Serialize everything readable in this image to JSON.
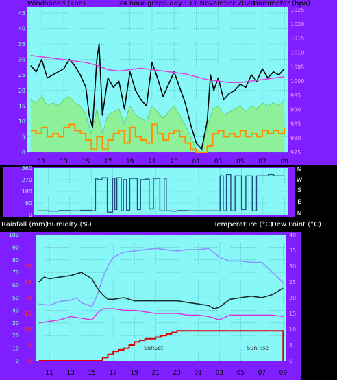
{
  "wind_panel": {
    "left_title": "Windspeed (kph)",
    "center_title": "24 hour graph day : 11 November 2020",
    "right_title": "Barometer (hpa)"
  },
  "lower_panel": {
    "rainfall_label": "Rainfall (mm)",
    "humidity_label": "Humidity (%)",
    "temperature_label": "Temperature (°C)",
    "dewpoint_label": "Dew Point (°C)",
    "sunset_label": "SunSet",
    "sunrise_label": "SunRise"
  },
  "direction_labels": [
    "N",
    "W",
    "S",
    "E",
    "N"
  ],
  "colors": {
    "frame": "#7f1fff",
    "plot_bg": "#88f7f7",
    "gust": "#000000",
    "avg_wind": "#8ff08f",
    "min_wind": "#ff8c00",
    "barometer": "#e040e0",
    "direction": "#1f4f7f",
    "humidity": "#9090ff",
    "temperature": "#1c2a2a",
    "dewpoint": "#dd33dd",
    "rain": "#dd0000"
  },
  "chart_data": [
    {
      "type": "line",
      "name": "wind-barometer",
      "x_ticks": [
        "11",
        "13",
        "15",
        "17",
        "19",
        "21",
        "23",
        "01",
        "03",
        "05",
        "07",
        "09"
      ],
      "y_left_ticks": [
        "0",
        "5",
        "10",
        "15",
        "20",
        "25",
        "30",
        "35",
        "40",
        "45"
      ],
      "y_right_ticks": [
        "975",
        "980",
        "985",
        "990",
        "995",
        "1000",
        "1005",
        "1010",
        "1015",
        "1020",
        "1025"
      ],
      "ylim_left": [
        0,
        47
      ],
      "ylim_right": [
        975,
        1026
      ],
      "hour_range": [
        9.7,
        33.3
      ],
      "series": [
        {
          "key": "gust",
          "hours": [
            10,
            10.5,
            11,
            11.5,
            12,
            12.5,
            13,
            13.5,
            14,
            14.5,
            15,
            15.3,
            15.6,
            16,
            16.2,
            16.5,
            17,
            17.5,
            18,
            18.5,
            19,
            19.5,
            20,
            20.5,
            21,
            21.5,
            22,
            22.5,
            23,
            23.5,
            24,
            24.5,
            25,
            25.5,
            26,
            26.3,
            26.6,
            27,
            27.5,
            28,
            28.5,
            29,
            29.5,
            30,
            30.5,
            31,
            31.5,
            32,
            32.5,
            33
          ],
          "values": [
            28,
            26,
            30,
            24,
            25,
            26,
            27,
            30,
            28,
            25,
            21,
            12,
            8,
            30,
            35,
            12,
            24,
            21,
            23,
            14,
            26,
            20,
            17,
            15,
            29,
            24,
            18,
            22,
            26,
            21,
            16,
            9,
            3,
            1,
            10,
            25,
            20,
            24,
            17,
            19,
            20,
            22,
            21,
            25,
            23,
            27,
            24,
            26,
            25,
            27
          ]
        },
        {
          "key": "avg",
          "hours": [
            10,
            10.5,
            11,
            11.5,
            12,
            12.5,
            13,
            13.5,
            14,
            14.5,
            15,
            15.5,
            16,
            16.5,
            17,
            17.5,
            18,
            18.5,
            19,
            19.5,
            20,
            20.5,
            21,
            21.5,
            22,
            22.5,
            23,
            23.5,
            24,
            24.5,
            25,
            25.5,
            26,
            26.5,
            27,
            27.5,
            28,
            28.5,
            29,
            29.5,
            30,
            30.5,
            31,
            31.5,
            32,
            32.5,
            33
          ],
          "values": [
            17,
            16,
            18,
            15,
            16,
            15,
            17,
            18,
            16,
            15,
            12,
            6,
            14,
            6,
            12,
            13,
            14,
            9,
            15,
            12,
            11,
            10,
            15,
            13,
            11,
            13,
            15,
            12,
            9,
            5,
            1,
            0,
            8,
            14,
            15,
            12,
            13,
            14,
            15,
            13,
            15,
            14,
            16,
            15,
            16,
            15,
            17
          ]
        },
        {
          "key": "min",
          "hours": [
            10,
            10.5,
            11,
            11.5,
            12,
            12.5,
            13,
            13.5,
            14,
            14.5,
            15,
            15.5,
            16,
            16.5,
            17,
            17.5,
            18,
            18.5,
            19,
            19.5,
            20,
            20.5,
            21,
            21.5,
            22,
            22.5,
            23,
            23.5,
            24,
            24.5,
            25,
            25.5,
            26,
            26.5,
            27,
            27.5,
            28,
            28.5,
            29,
            29.5,
            30,
            30.5,
            31,
            31.5,
            32,
            32.5,
            33
          ],
          "values": [
            7,
            6,
            8,
            5,
            6,
            5,
            8,
            9,
            7,
            6,
            4,
            1,
            5,
            1,
            4,
            6,
            7,
            3,
            8,
            5,
            4,
            3,
            9,
            6,
            4,
            6,
            7,
            5,
            3,
            1,
            0,
            0,
            2,
            6,
            7,
            5,
            6,
            5,
            7,
            5,
            6,
            5,
            7,
            6,
            7,
            6,
            8
          ]
        },
        {
          "key": "barometer",
          "unit": "hpa",
          "hours": [
            10,
            11,
            12,
            13,
            14,
            15,
            16,
            17,
            18,
            19,
            20,
            21,
            22,
            23,
            24,
            25,
            26,
            27,
            28,
            29,
            30,
            31,
            32,
            33
          ],
          "values": [
            1009,
            1008.5,
            1008,
            1007.5,
            1007,
            1006.5,
            1005.5,
            1004,
            1003.5,
            1004,
            1004.5,
            1004,
            1003.5,
            1003,
            1002.5,
            1001.5,
            1000.5,
            1000,
            999.5,
            999.5,
            1000,
            1000.5,
            1001,
            1001.5
          ]
        }
      ]
    },
    {
      "type": "line",
      "name": "wind-direction",
      "x_ticks": [
        "11",
        "13",
        "15",
        "17",
        "19",
        "21",
        "23",
        "01",
        "03",
        "05",
        "07",
        "09"
      ],
      "y_ticks": [
        "0",
        "90",
        "180",
        "270",
        "360"
      ],
      "ylim": [
        0,
        360
      ],
      "series": [
        {
          "key": "direction",
          "hours": [
            10,
            11,
            12,
            13,
            14,
            15,
            15.4,
            15.6,
            16,
            16.5,
            17,
            17.2,
            17.4,
            17.8,
            18,
            18.3,
            18.6,
            19,
            19.3,
            19.6,
            20,
            20.4,
            20.8,
            21,
            21.4,
            21.8,
            22,
            22.5,
            23,
            24,
            25,
            26,
            26.5,
            27,
            27.3,
            27.6,
            28,
            28.4,
            28.8,
            29,
            29.4,
            29.8,
            30,
            30.4,
            31,
            31.5,
            32,
            32.5,
            33
          ],
          "values": [
            30,
            28,
            32,
            30,
            34,
            30,
            280,
            270,
            285,
            20,
            280,
            40,
            285,
            30,
            270,
            35,
            280,
            280,
            40,
            270,
            275,
            45,
            280,
            280,
            30,
            280,
            30,
            28,
            32,
            30,
            30,
            30,
            30,
            300,
            30,
            310,
            30,
            300,
            300,
            40,
            300,
            300,
            30,
            300,
            300,
            310,
            300,
            300,
            300
          ]
        }
      ]
    },
    {
      "type": "line",
      "name": "humidity-temperature-rain",
      "x_ticks": [
        "11",
        "13",
        "15",
        "17",
        "19",
        "21",
        "23",
        "01",
        "03",
        "05",
        "07",
        "09"
      ],
      "y_left_ticks": [
        "0",
        "10",
        "20",
        "30",
        "40",
        "50",
        "60",
        "70",
        "80",
        "90",
        "100"
      ],
      "y_right_ticks": [
        "0",
        "5",
        "10",
        "15",
        "20",
        "25",
        "30",
        "35",
        "40"
      ],
      "rain_ticks": [
        "0",
        "5",
        "10",
        "15",
        "20",
        "25",
        "30"
      ],
      "ylim_left": [
        0,
        100
      ],
      "ylim_right": [
        0,
        40
      ],
      "series": [
        {
          "key": "humidity",
          "unit": "%",
          "hours": [
            10,
            11,
            12,
            13,
            13.5,
            14,
            15,
            15.5,
            16,
            16.5,
            17,
            18,
            19,
            20,
            21,
            22,
            23,
            24,
            25,
            26,
            27,
            28,
            29,
            30,
            31,
            32,
            33
          ],
          "values": [
            45,
            44,
            47,
            48,
            50,
            46,
            43,
            52,
            65,
            75,
            82,
            86,
            87,
            88,
            89,
            88,
            87,
            88,
            88,
            89,
            82,
            79,
            79,
            78,
            78,
            70,
            62
          ]
        },
        {
          "key": "temperature",
          "unit": "C",
          "hours": [
            10,
            10.5,
            11,
            12,
            13,
            14,
            14.5,
            15,
            15.5,
            16,
            16.5,
            17,
            18,
            19,
            20,
            21,
            22,
            23,
            24,
            25,
            26,
            26.5,
            27,
            28,
            29,
            30,
            31,
            32,
            33
          ],
          "values": [
            25,
            26.5,
            26,
            26.5,
            27,
            28,
            27,
            26,
            23,
            21,
            19.5,
            19.5,
            20,
            19,
            19,
            19,
            19,
            19,
            18.5,
            18,
            17.5,
            16.5,
            17,
            19.5,
            20,
            20.5,
            20,
            21,
            23
          ]
        },
        {
          "key": "dewpoint",
          "unit": "C",
          "hours": [
            10,
            11,
            12,
            13,
            14,
            15,
            15.5,
            16,
            17,
            18,
            19,
            20,
            21,
            22,
            23,
            24,
            25,
            26,
            27,
            28,
            29,
            30,
            31,
            32,
            33
          ],
          "values": [
            12,
            12.5,
            13,
            14,
            13.5,
            13,
            15,
            16.5,
            16.5,
            16,
            16,
            15.5,
            15,
            15,
            15,
            14.5,
            14.5,
            14,
            13,
            14.5,
            14.5,
            14.5,
            14.5,
            14.5,
            14
          ]
        },
        {
          "key": "rain",
          "unit": "mm",
          "hours": [
            10,
            15.6,
            16,
            16.5,
            17,
            17.5,
            18,
            18.5,
            19,
            19.5,
            20,
            20.5,
            21,
            21.5,
            22,
            22.5,
            23,
            24,
            25,
            26,
            27,
            28,
            29,
            30,
            31,
            32,
            32.95,
            33
          ],
          "values": [
            0,
            0,
            1,
            2,
            3,
            3.5,
            4,
            5,
            6,
            6.5,
            7,
            7,
            7.5,
            8,
            8.5,
            9,
            9.5,
            9.5,
            9.5,
            9.5,
            9.5,
            9.5,
            9.5,
            9.5,
            9.5,
            9.5,
            9.5,
            0
          ]
        }
      ],
      "markers": [
        {
          "label": "SunSet",
          "hour": 20.8
        },
        {
          "label": "SunRise",
          "hour": 30.6
        }
      ]
    }
  ]
}
